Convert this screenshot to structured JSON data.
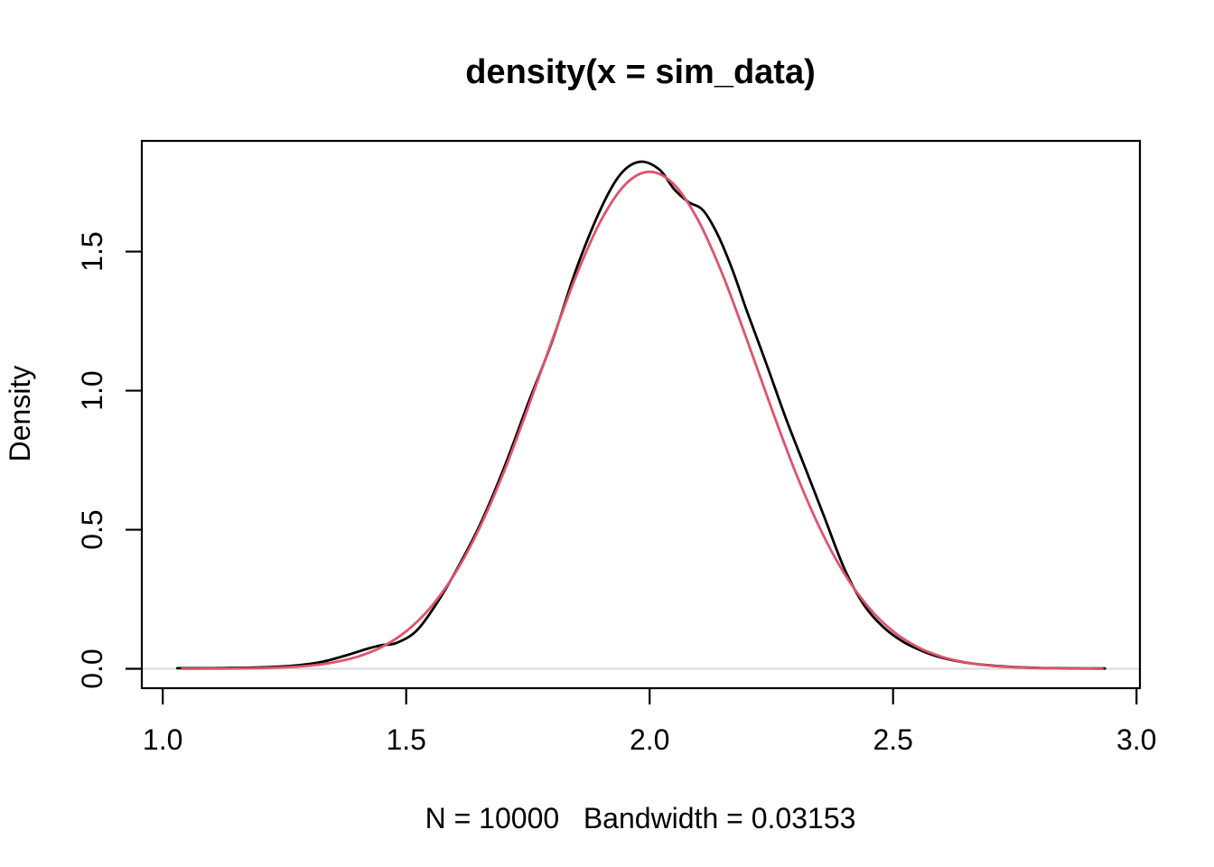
{
  "figure": {
    "background": "#ffffff",
    "text_color": "#000000"
  },
  "chart_data": {
    "type": "line",
    "title": "density(x = sim_data)",
    "xlabel": "N = 10000   Bandwidth = 0.03153",
    "ylabel": "Density",
    "x_ticks": [
      1.0,
      1.5,
      2.0,
      2.5,
      3.0
    ],
    "x_tick_labels": [
      "1.0",
      "1.5",
      "2.0",
      "2.5",
      "3.0"
    ],
    "y_ticks": [
      0.0,
      0.5,
      1.0,
      1.5
    ],
    "y_tick_labels": [
      "0.0",
      "0.5",
      "1.0",
      "1.5"
    ],
    "xlim": [
      0.957,
      3.007
    ],
    "ylim": [
      -0.0697,
      1.898
    ],
    "grid": false,
    "legend": "none",
    "box": true,
    "box_color": "#000000",
    "baseline": {
      "y": 0,
      "color": "#d9d9d9"
    },
    "n": 10000,
    "bandwidth": 0.03153,
    "series": [
      {
        "name": "kernel-density-estimate",
        "color": "#000000",
        "width": 2.8,
        "points": [
          [
            1.03,
            0.002
          ],
          [
            1.08,
            0.002
          ],
          [
            1.13,
            0.003
          ],
          [
            1.18,
            0.004
          ],
          [
            1.23,
            0.007
          ],
          [
            1.28,
            0.013
          ],
          [
            1.33,
            0.026
          ],
          [
            1.38,
            0.05
          ],
          [
            1.42,
            0.072
          ],
          [
            1.45,
            0.085
          ],
          [
            1.48,
            0.093
          ],
          [
            1.52,
            0.135
          ],
          [
            1.56,
            0.228
          ],
          [
            1.6,
            0.345
          ],
          [
            1.65,
            0.512
          ],
          [
            1.7,
            0.718
          ],
          [
            1.75,
            0.952
          ],
          [
            1.8,
            1.178
          ],
          [
            1.85,
            1.44
          ],
          [
            1.9,
            1.655
          ],
          [
            1.94,
            1.778
          ],
          [
            1.98,
            1.823
          ],
          [
            2.02,
            1.795
          ],
          [
            2.05,
            1.725
          ],
          [
            2.08,
            1.678
          ],
          [
            2.11,
            1.648
          ],
          [
            2.14,
            1.56
          ],
          [
            2.17,
            1.435
          ],
          [
            2.2,
            1.285
          ],
          [
            2.24,
            1.095
          ],
          [
            2.28,
            0.9
          ],
          [
            2.32,
            0.72
          ],
          [
            2.36,
            0.54
          ],
          [
            2.4,
            0.36
          ],
          [
            2.44,
            0.23
          ],
          [
            2.48,
            0.15
          ],
          [
            2.52,
            0.098
          ],
          [
            2.56,
            0.064
          ],
          [
            2.6,
            0.04
          ],
          [
            2.65,
            0.022
          ],
          [
            2.7,
            0.012
          ],
          [
            2.75,
            0.006
          ],
          [
            2.8,
            0.003
          ],
          [
            2.85,
            0.002
          ],
          [
            2.9,
            0.0015
          ],
          [
            2.935,
            0.001
          ]
        ]
      },
      {
        "name": "reference-density-overlay",
        "color": "#DF536B",
        "width": 2.8,
        "points": [
          [
            1.04,
            0.0001
          ],
          [
            1.1,
            0.0004
          ],
          [
            1.15,
            0.001
          ],
          [
            1.2,
            0.0024
          ],
          [
            1.25,
            0.0054
          ],
          [
            1.3,
            0.0113
          ],
          [
            1.35,
            0.0227
          ],
          [
            1.4,
            0.0434
          ],
          [
            1.45,
            0.0785
          ],
          [
            1.5,
            0.1349
          ],
          [
            1.55,
            0.2205
          ],
          [
            1.6,
            0.3422
          ],
          [
            1.65,
            0.5039
          ],
          [
            1.7,
            0.7052
          ],
          [
            1.75,
            0.9371
          ],
          [
            1.8,
            1.1823
          ],
          [
            1.85,
            1.4164
          ],
          [
            1.9,
            1.6115
          ],
          [
            1.95,
            1.7414
          ],
          [
            2.0,
            1.787
          ],
          [
            2.05,
            1.7414
          ],
          [
            2.1,
            1.6115
          ],
          [
            2.15,
            1.4164
          ],
          [
            2.2,
            1.1823
          ],
          [
            2.25,
            0.9371
          ],
          [
            2.3,
            0.7052
          ],
          [
            2.35,
            0.5039
          ],
          [
            2.4,
            0.3422
          ],
          [
            2.45,
            0.2205
          ],
          [
            2.5,
            0.1349
          ],
          [
            2.55,
            0.0785
          ],
          [
            2.6,
            0.0434
          ],
          [
            2.65,
            0.0227
          ],
          [
            2.7,
            0.0113
          ],
          [
            2.75,
            0.0054
          ],
          [
            2.8,
            0.0024
          ],
          [
            2.85,
            0.001
          ],
          [
            2.9,
            0.0004
          ],
          [
            2.93,
            0.0002
          ]
        ]
      }
    ]
  }
}
